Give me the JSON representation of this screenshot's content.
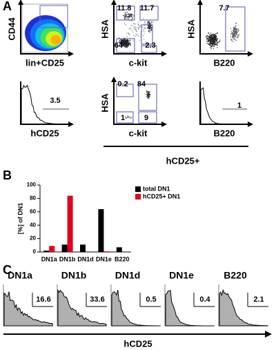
{
  "panel_a": {
    "label": "A",
    "plots": [
      {
        "y_label": "CD44",
        "x_label": "lin+CD25",
        "gates": []
      },
      {
        "y_label": "HSA",
        "x_label": "c-kit",
        "gates": [
          11.8,
          11.7,
          64,
          2.3
        ]
      },
      {
        "y_label": "HSA",
        "x_label": "B220",
        "gates": [
          7.7
        ]
      },
      {
        "x_label": "hCD25",
        "gates": [
          3.5
        ]
      },
      {
        "y_label": "HSA",
        "x_label": "c-kit",
        "gates": [
          0.2,
          84,
          1,
          9
        ]
      },
      {
        "x_label": "B220",
        "gates": [
          1
        ]
      }
    ],
    "group_label": "hCD25+"
  },
  "panel_b": {
    "label": "B"
  },
  "chart_data": {
    "type": "bar",
    "y_label": "[%] of DN1",
    "categories": [
      "DN1a",
      "DN1b",
      "DN1d",
      "DN1e",
      "B220"
    ],
    "series": [
      {
        "name": "total DN1",
        "color": "#000000",
        "values": [
          2,
          11,
          11,
          64,
          7
        ]
      },
      {
        "name": "hCD25+ DN1",
        "color": "#e3001b",
        "values": [
          9,
          84,
          0,
          1,
          0
        ]
      }
    ],
    "ylim": [
      0,
      100
    ],
    "yticks": [
      0,
      20,
      40,
      60,
      80,
      100
    ],
    "legend": "top-right"
  },
  "panel_c": {
    "label": "C",
    "plots": [
      {
        "title": "DN1a",
        "value": 16.6
      },
      {
        "title": "DN1b",
        "value": 33.6
      },
      {
        "title": "DN1d",
        "value": 0.5
      },
      {
        "title": "DN1e",
        "value": 0.4
      },
      {
        "title": "B220",
        "value": 2.1
      }
    ],
    "x_label": "hCD25"
  }
}
